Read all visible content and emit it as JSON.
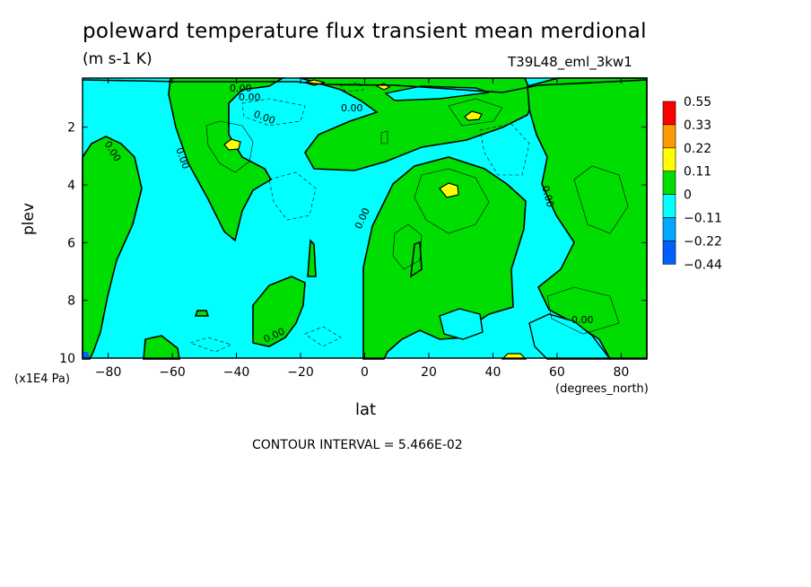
{
  "chart_data": {
    "type": "heatmap",
    "title": "poleward temperature flux transient mean merdional",
    "units": "(m s-1 K)",
    "run_label": "T39L48_eml_3kw1",
    "xlabel": "lat",
    "x_units": "(degrees_north)",
    "ylabel": "plev",
    "y_units": "(x1E4 Pa)",
    "x_ticks": [
      "-80",
      "-60",
      "-40",
      "-20",
      "0",
      "20",
      "40",
      "60",
      "80"
    ],
    "y_ticks": [
      "2",
      "4",
      "6",
      "8",
      "10"
    ],
    "xlim": [
      -88,
      88
    ],
    "ylim": [
      10,
      0.3
    ],
    "contour_interval_text": "CONTOUR INTERVAL = 5.466E-02",
    "contour_labels": [
      "0.00",
      "0.00",
      "0.00",
      "0.00",
      "0.00",
      "0.00",
      "0.00",
      "0.00",
      "0.00",
      "0.00"
    ],
    "colorbar": {
      "levels": [
        "0.55",
        "0.33",
        "0.22",
        "0.11",
        "0",
        "−0.11",
        "−0.22",
        "−0.44"
      ],
      "colors": [
        "#ff0000",
        "#ff9900",
        "#ffff00",
        "#00dd00",
        "#00ffff",
        "#00a8ff",
        "#0060ff"
      ]
    },
    "palette": {
      "positive": "#00dd00",
      "negative": "#00ffff"
    }
  }
}
